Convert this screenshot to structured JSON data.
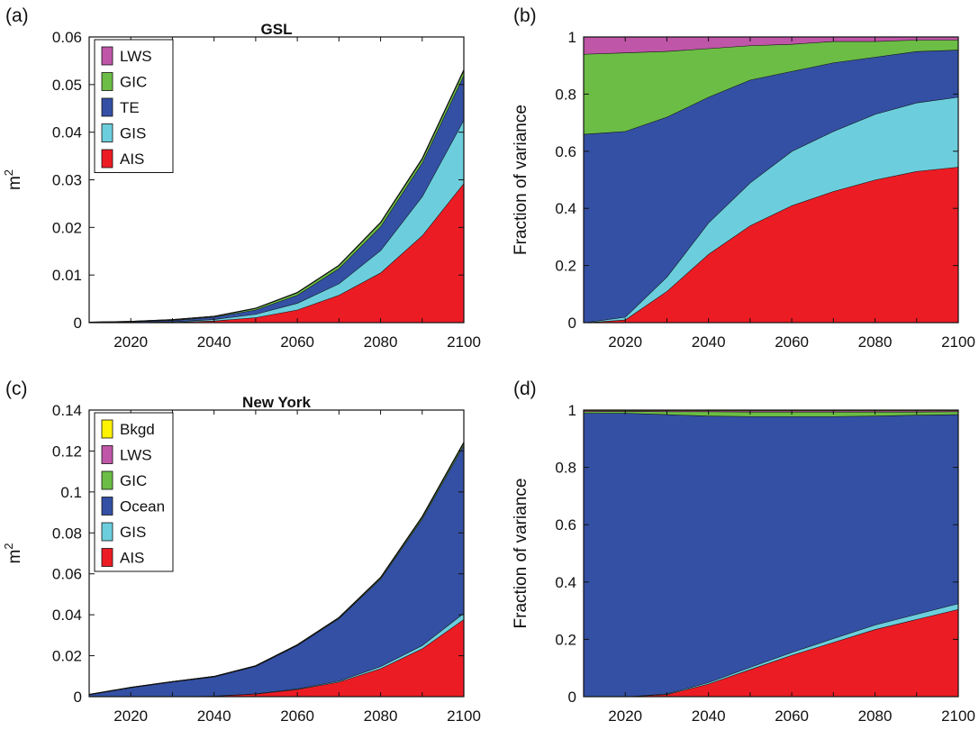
{
  "chart_data": [
    {
      "panel": "(a)",
      "type": "area",
      "stacked": true,
      "title": "GSL",
      "xlabel": "",
      "ylabel": "m2",
      "x": [
        2010,
        2020,
        2030,
        2040,
        2050,
        2060,
        2070,
        2080,
        2090,
        2100
      ],
      "xticks": [
        "2020",
        "2040",
        "2060",
        "2080",
        "2100"
      ],
      "xlim": [
        2010,
        2100
      ],
      "ylim": [
        0,
        0.06
      ],
      "yticks": [
        "0",
        "0.01",
        "0.02",
        "0.03",
        "0.04",
        "0.05",
        "0.06"
      ],
      "legend_position": "top-left",
      "series": [
        {
          "name": "AIS",
          "color": "#ec1c24",
          "values": [
            0,
            0,
            0.0001,
            0.0004,
            0.0011,
            0.0027,
            0.0058,
            0.0105,
            0.0183,
            0.0293
          ]
        },
        {
          "name": "GIS",
          "color": "#6ccedc",
          "values": [
            0,
            5e-05,
            0.0001,
            0.0003,
            0.0007,
            0.0014,
            0.0024,
            0.0047,
            0.0082,
            0.0133
          ]
        },
        {
          "name": "TE",
          "color": "#3450a4",
          "values": [
            5e-05,
            0.00015,
            0.0003,
            0.0005,
            0.0009,
            0.0017,
            0.0032,
            0.005,
            0.0071,
            0.0094
          ]
        },
        {
          "name": "GIC",
          "color": "#6cbd45",
          "values": [
            3e-05,
            5e-05,
            0.0001,
            0.0001,
            0.0003,
            0.0005,
            0.0006,
            0.0008,
            0.0008,
            0.001
          ]
        },
        {
          "name": "LWS",
          "color": "#bf56a8",
          "values": [
            0,
            0,
            2e-05,
            2e-05,
            2e-05,
            3e-05,
            4e-05,
            5e-05,
            6e-05,
            0.0001
          ]
        }
      ]
    },
    {
      "panel": "(b)",
      "type": "area",
      "stacked": true,
      "title": "",
      "xlabel": "",
      "ylabel": "Fraction of variance",
      "x": [
        2010,
        2020,
        2030,
        2040,
        2050,
        2060,
        2070,
        2080,
        2090,
        2100
      ],
      "xticks": [
        "2020",
        "2040",
        "2060",
        "2080",
        "2100"
      ],
      "xlim": [
        2010,
        2100
      ],
      "ylim": [
        0,
        1
      ],
      "yticks": [
        "0",
        "0.2",
        "0.4",
        "0.6",
        "0.8",
        "1"
      ],
      "series": [
        {
          "name": "AIS",
          "color": "#ec1c24",
          "values": [
            0,
            0.01,
            0.11,
            0.24,
            0.34,
            0.41,
            0.46,
            0.5,
            0.53,
            0.545
          ]
        },
        {
          "name": "GIS",
          "color": "#6ccedc",
          "values": [
            0,
            0.01,
            0.05,
            0.11,
            0.15,
            0.19,
            0.21,
            0.23,
            0.24,
            0.245
          ]
        },
        {
          "name": "TE",
          "color": "#3450a4",
          "values": [
            0.66,
            0.65,
            0.56,
            0.44,
            0.36,
            0.28,
            0.24,
            0.2,
            0.18,
            0.165
          ]
        },
        {
          "name": "GIC",
          "color": "#6cbd45",
          "values": [
            0.28,
            0.275,
            0.23,
            0.17,
            0.12,
            0.095,
            0.075,
            0.055,
            0.04,
            0.035
          ]
        },
        {
          "name": "LWS",
          "color": "#bf56a8",
          "values": [
            0.06,
            0.055,
            0.05,
            0.04,
            0.03,
            0.025,
            0.015,
            0.015,
            0.01,
            0.01
          ]
        }
      ]
    },
    {
      "panel": "(c)",
      "type": "area",
      "stacked": true,
      "title": "New York",
      "xlabel": "",
      "ylabel": "m2",
      "x": [
        2010,
        2020,
        2030,
        2040,
        2050,
        2060,
        2070,
        2080,
        2090,
        2100
      ],
      "xticks": [
        "2020",
        "2040",
        "2060",
        "2080",
        "2100"
      ],
      "xlim": [
        2010,
        2100
      ],
      "ylim": [
        0,
        0.14
      ],
      "yticks": [
        "0",
        "0.02",
        "0.04",
        "0.06",
        "0.08",
        "0.1",
        "0.12",
        "0.14"
      ],
      "legend_position": "top-left",
      "series": [
        {
          "name": "AIS",
          "color": "#ec1c24",
          "values": [
            0,
            0,
            0,
            0.0003,
            0.0013,
            0.0036,
            0.0072,
            0.0138,
            0.0235,
            0.0378
          ]
        },
        {
          "name": "GIS",
          "color": "#6ccedc",
          "values": [
            0,
            0,
            0,
            0.0001,
            0.0002,
            0.0003,
            0.0005,
            0.001,
            0.0016,
            0.003
          ]
        },
        {
          "name": "Ocean",
          "color": "#3450a4",
          "values": [
            0.001,
            0.0045,
            0.0073,
            0.0093,
            0.0134,
            0.0211,
            0.0305,
            0.0428,
            0.0618,
            0.0822
          ]
        },
        {
          "name": "GIC",
          "color": "#6cbd45",
          "values": [
            0,
            0,
            0,
            0.0001,
            0.0001,
            0.0002,
            0.0003,
            0.0005,
            0.0008,
            0.001
          ]
        },
        {
          "name": "LWS",
          "color": "#bf56a8",
          "values": [
            0,
            0,
            0,
            5e-05,
            5e-05,
            0.0001,
            0.0001,
            0.0001,
            0.0002,
            0.0002
          ]
        },
        {
          "name": "Bkgd",
          "color": "#fff200",
          "values": [
            0,
            0,
            0,
            2e-05,
            2e-05,
            3e-05,
            3e-05,
            4e-05,
            5e-05,
            5e-05
          ]
        }
      ]
    },
    {
      "panel": "(d)",
      "type": "area",
      "stacked": true,
      "title": "",
      "xlabel": "",
      "ylabel": "Fraction of variance",
      "x": [
        2010,
        2020,
        2030,
        2040,
        2050,
        2060,
        2070,
        2080,
        2090,
        2100
      ],
      "xticks": [
        "2020",
        "2040",
        "2060",
        "2080",
        "2100"
      ],
      "xlim": [
        2010,
        2100
      ],
      "ylim": [
        0,
        1
      ],
      "yticks": [
        "0",
        "0.2",
        "0.4",
        "0.6",
        "0.8",
        "1"
      ],
      "series": [
        {
          "name": "AIS",
          "color": "#ec1c24",
          "values": [
            0,
            0,
            0.008,
            0.045,
            0.095,
            0.145,
            0.19,
            0.235,
            0.27,
            0.305
          ]
        },
        {
          "name": "GIS",
          "color": "#6ccedc",
          "values": [
            0,
            0,
            0.002,
            0.005,
            0.008,
            0.01,
            0.013,
            0.016,
            0.018,
            0.02
          ]
        },
        {
          "name": "Ocean",
          "color": "#3450a4",
          "values": [
            0.99,
            0.99,
            0.975,
            0.93,
            0.875,
            0.823,
            0.775,
            0.729,
            0.695,
            0.66
          ]
        },
        {
          "name": "GIC",
          "color": "#6cbd45",
          "values": [
            0.005,
            0.006,
            0.01,
            0.015,
            0.016,
            0.016,
            0.016,
            0.014,
            0.011,
            0.01
          ]
        },
        {
          "name": "LWS",
          "color": "#bf56a8",
          "values": [
            0.003,
            0.002,
            0.003,
            0.003,
            0.004,
            0.004,
            0.004,
            0.004,
            0.004,
            0.003
          ]
        },
        {
          "name": "Bkgd",
          "color": "#fff200",
          "values": [
            0.002,
            0.002,
            0.002,
            0.002,
            0.002,
            0.002,
            0.002,
            0.002,
            0.002,
            0.002
          ]
        }
      ]
    }
  ]
}
